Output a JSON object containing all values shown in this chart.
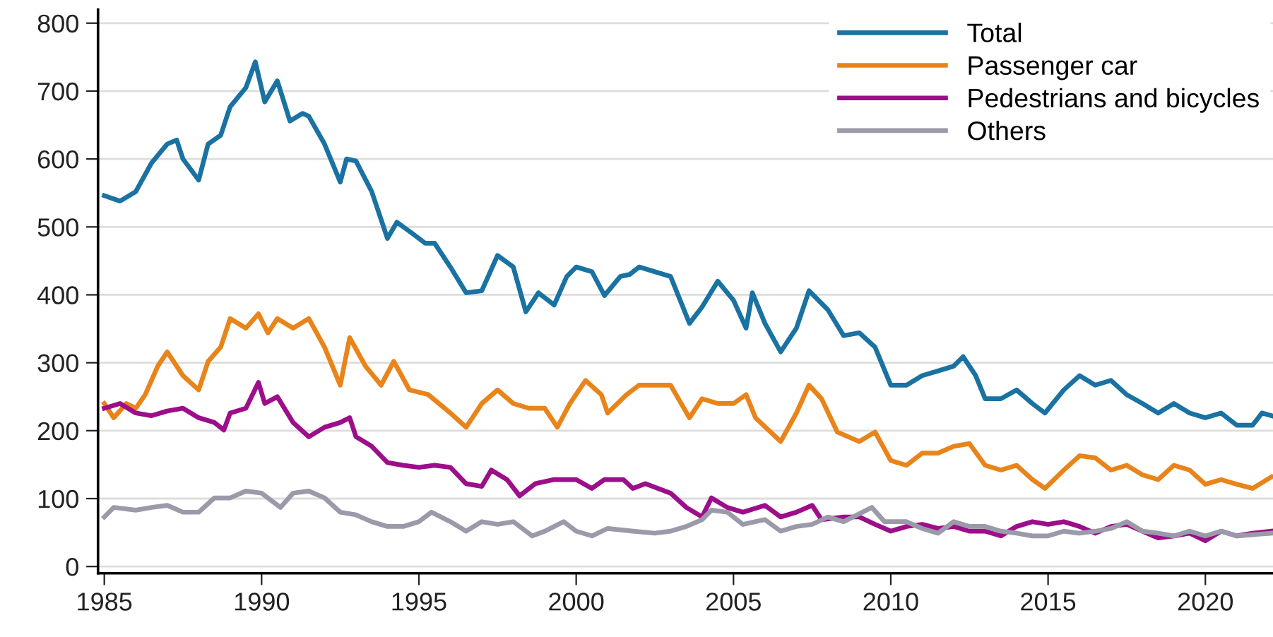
{
  "chart_data": {
    "type": "line",
    "xlim": [
      1984.8,
      2022.15
    ],
    "ylim": [
      -10,
      820
    ],
    "xticks": [
      1985,
      1990,
      1995,
      2000,
      2005,
      2010,
      2015,
      2020
    ],
    "yticks": [
      0,
      100,
      200,
      300,
      400,
      500,
      600,
      700,
      800
    ],
    "grid": "y",
    "legend": "top right",
    "marker": "none",
    "line_style": "solid",
    "series": [
      {
        "name": "Total",
        "color": "#1a72a2",
        "x": [
          1985.0,
          1985.5,
          1986.0,
          1986.5,
          1987.0,
          1987.3,
          1987.5,
          1988.0,
          1988.3,
          1988.7,
          1989.0,
          1989.5,
          1989.8,
          1990.1,
          1990.5,
          1990.9,
          1991.3,
          1991.5,
          1992.0,
          1992.5,
          1992.7,
          1993.0,
          1993.5,
          1994.0,
          1994.3,
          1994.8,
          1995.2,
          1995.5,
          1996.0,
          1996.5,
          1997.0,
          1997.5,
          1998.0,
          1998.4,
          1998.8,
          1999.3,
          1999.7,
          2000.0,
          2000.5,
          2000.9,
          2001.4,
          2001.7,
          2002.0,
          2003.0,
          2003.6,
          2004.0,
          2004.5,
          2005.0,
          2005.4,
          2005.6,
          2006.0,
          2006.5,
          2007.0,
          2007.4,
          2008.0,
          2008.5,
          2009.0,
          2009.5,
          2010.0,
          2010.5,
          2011.0,
          2011.5,
          2012.0,
          2012.3,
          2012.7,
          2013.0,
          2013.5,
          2014.0,
          2014.5,
          2014.9,
          2015.5,
          2016.0,
          2016.5,
          2017.0,
          2017.5,
          2018.0,
          2018.5,
          2019.0,
          2019.5,
          2020.0,
          2020.5,
          2021.0,
          2021.5,
          2021.8,
          2022.1
        ],
        "values": [
          546,
          538,
          552,
          594,
          622,
          628,
          600,
          569,
          622,
          635,
          677,
          705,
          743,
          684,
          715,
          656,
          667,
          663,
          622,
          566,
          600,
          597,
          552,
          483,
          507,
          490,
          476,
          476,
          441,
          403,
          406,
          458,
          441,
          375,
          403,
          385,
          427,
          441,
          434,
          399,
          427,
          430,
          441,
          427,
          358,
          382,
          420,
          392,
          351,
          403,
          358,
          316,
          351,
          406,
          378,
          340,
          344,
          323,
          267,
          267,
          281,
          288,
          295,
          309,
          281,
          247,
          247,
          260,
          240,
          226,
          260,
          281,
          267,
          274,
          253,
          240,
          226,
          240,
          226,
          219,
          226,
          208,
          208,
          226,
          222
        ]
      },
      {
        "name": "Passenger car",
        "color": "#e8841a",
        "x": [
          1985.0,
          1985.3,
          1985.7,
          1986.0,
          1986.3,
          1986.7,
          1987.0,
          1987.5,
          1988.0,
          1988.3,
          1988.7,
          1989.0,
          1989.5,
          1989.9,
          1990.2,
          1990.5,
          1991.0,
          1991.5,
          1992.0,
          1992.5,
          1992.8,
          1993.3,
          1993.8,
          1994.2,
          1994.7,
          1995.3,
          1996.0,
          1996.5,
          1997.0,
          1997.5,
          1998.0,
          1998.5,
          1999.0,
          1999.4,
          1999.8,
          2000.3,
          2000.8,
          2001.0,
          2001.6,
          2002.0,
          2003.0,
          2003.6,
          2004.0,
          2004.5,
          2005.0,
          2005.4,
          2005.7,
          2006.5,
          2007.0,
          2007.4,
          2007.8,
          2008.3,
          2009.0,
          2009.5,
          2010.0,
          2010.5,
          2011.0,
          2011.5,
          2012.0,
          2012.5,
          2013.0,
          2013.5,
          2014.0,
          2014.5,
          2014.9,
          2015.5,
          2016.0,
          2016.5,
          2017.0,
          2017.5,
          2018.0,
          2018.5,
          2019.0,
          2019.5,
          2020.0,
          2020.5,
          2021.0,
          2021.5,
          2022.1
        ],
        "values": [
          240,
          219,
          240,
          233,
          253,
          295,
          316,
          281,
          260,
          302,
          323,
          365,
          351,
          372,
          344,
          365,
          351,
          365,
          323,
          267,
          337,
          295,
          267,
          302,
          260,
          253,
          226,
          205,
          240,
          260,
          240,
          233,
          233,
          205,
          240,
          274,
          253,
          226,
          253,
          267,
          267,
          219,
          247,
          240,
          240,
          253,
          219,
          184,
          226,
          267,
          247,
          198,
          184,
          198,
          156,
          149,
          167,
          167,
          177,
          181,
          149,
          142,
          149,
          128,
          115,
          142,
          163,
          160,
          142,
          149,
          135,
          128,
          149,
          142,
          121,
          128,
          121,
          115,
          132
        ]
      },
      {
        "name": "Pedestrians and bicycles",
        "color": "#9c0e8a",
        "x": [
          1985.0,
          1985.5,
          1986.0,
          1986.5,
          1987.0,
          1987.5,
          1988.0,
          1988.5,
          1988.8,
          1989.0,
          1989.5,
          1989.9,
          1990.1,
          1990.5,
          1991.0,
          1991.5,
          1992.0,
          1992.5,
          1992.8,
          1993.0,
          1993.5,
          1994.0,
          1994.5,
          1995.0,
          1995.5,
          1996.0,
          1996.5,
          1997.0,
          1997.3,
          1997.8,
          1998.2,
          1998.7,
          1999.3,
          2000.0,
          2000.5,
          2000.9,
          2001.5,
          2001.8,
          2002.2,
          2003.0,
          2003.5,
          2004.0,
          2004.3,
          2004.8,
          2005.3,
          2006.0,
          2006.5,
          2007.0,
          2007.5,
          2007.8,
          2008.5,
          2009.0,
          2009.5,
          2010.0,
          2010.5,
          2011.0,
          2011.5,
          2012.0,
          2012.5,
          2013.0,
          2013.5,
          2014.0,
          2014.5,
          2015.0,
          2015.5,
          2016.0,
          2016.5,
          2017.0,
          2017.5,
          2018.0,
          2018.5,
          2019.0,
          2019.5,
          2020.0,
          2020.5,
          2021.0,
          2021.5,
          2022.1
        ],
        "values": [
          233,
          240,
          226,
          222,
          229,
          233,
          219,
          212,
          201,
          226,
          233,
          271,
          240,
          250,
          212,
          191,
          205,
          212,
          219,
          191,
          177,
          153,
          149,
          146,
          149,
          146,
          122,
          118,
          142,
          128,
          104,
          122,
          128,
          128,
          115,
          128,
          128,
          115,
          122,
          108,
          87,
          73,
          101,
          87,
          80,
          90,
          73,
          80,
          90,
          69,
          73,
          73,
          62,
          52,
          59,
          62,
          56,
          59,
          52,
          52,
          45,
          59,
          66,
          62,
          66,
          59,
          49,
          59,
          62,
          52,
          42,
          45,
          49,
          38,
          52,
          45,
          49,
          52
        ]
      },
      {
        "name": "Others",
        "color": "#9b9aa9",
        "x": [
          1985.0,
          1985.3,
          1986.0,
          1986.5,
          1987.0,
          1987.5,
          1988.0,
          1988.5,
          1989.0,
          1989.5,
          1990.0,
          1990.6,
          1991.0,
          1991.5,
          1992.0,
          1992.5,
          1993.0,
          1993.5,
          1994.0,
          1994.5,
          1995.0,
          1995.4,
          1996.0,
          1996.5,
          1997.0,
          1997.5,
          1998.0,
          1998.6,
          1999.0,
          1999.6,
          2000.0,
          2000.5,
          2001.0,
          2001.8,
          2002.5,
          2003.0,
          2003.5,
          2004.0,
          2004.3,
          2004.8,
          2005.3,
          2006.0,
          2006.5,
          2007.0,
          2007.5,
          2008.0,
          2008.5,
          2009.4,
          2009.8,
          2010.5,
          2011.0,
          2011.5,
          2012.0,
          2012.5,
          2013.0,
          2013.5,
          2014.0,
          2014.5,
          2015.0,
          2015.5,
          2016.0,
          2016.5,
          2017.0,
          2017.5,
          2018.0,
          2018.5,
          2019.0,
          2019.5,
          2020.0,
          2020.5,
          2021.0,
          2022.1
        ],
        "values": [
          73,
          87,
          83,
          87,
          90,
          80,
          80,
          101,
          101,
          111,
          108,
          87,
          108,
          111,
          101,
          80,
          76,
          66,
          59,
          59,
          66,
          80,
          66,
          52,
          66,
          62,
          66,
          45,
          52,
          66,
          52,
          45,
          56,
          52,
          49,
          52,
          59,
          69,
          83,
          80,
          62,
          69,
          52,
          59,
          62,
          73,
          66,
          87,
          66,
          66,
          56,
          49,
          66,
          59,
          59,
          52,
          49,
          45,
          45,
          52,
          49,
          52,
          56,
          66,
          52,
          49,
          45,
          52,
          45,
          52,
          45,
          49
        ]
      }
    ]
  }
}
